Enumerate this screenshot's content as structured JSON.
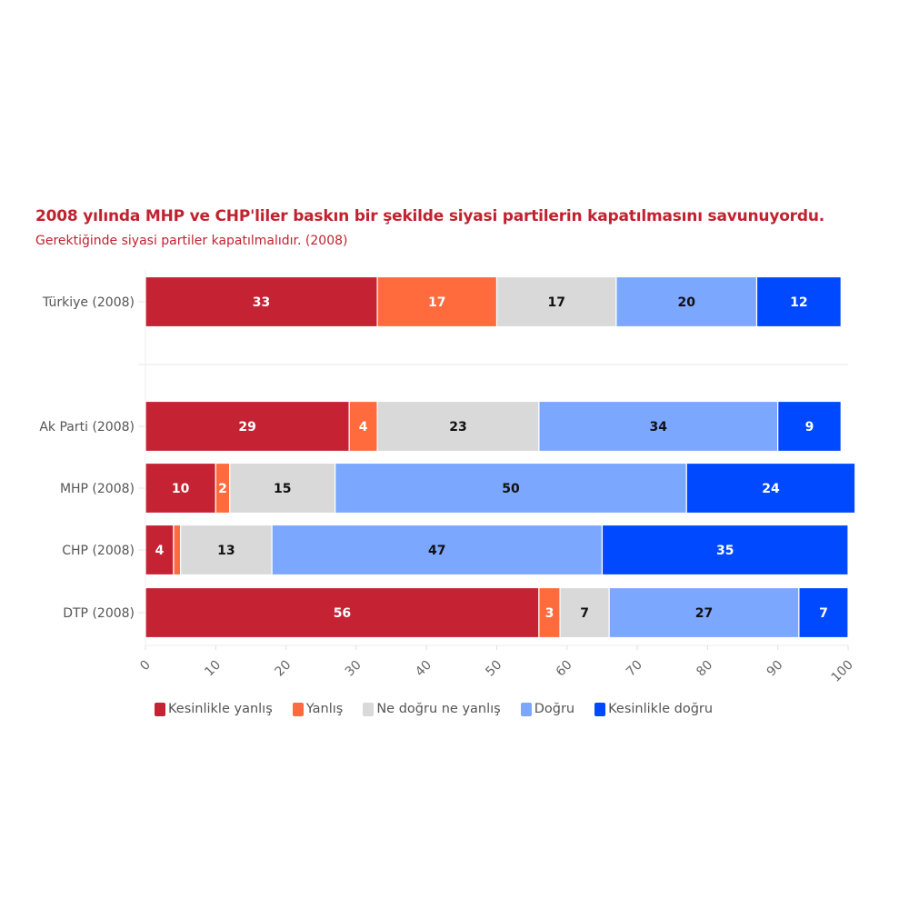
{
  "chart_data": {
    "type": "bar",
    "orientation": "horizontal",
    "stacked": true,
    "title": "2008 yılında MHP ve CHP'liler baskın bir şekilde siyasi partilerin kapatılmasını savunuyordu.",
    "subtitle": "Gerektiğinde siyasi partiler kapatılmalıdır. (2008)",
    "xlabel": "",
    "ylabel": "",
    "xlim": [
      0,
      100
    ],
    "xticks": [
      "0",
      "10",
      "20",
      "30",
      "40",
      "50",
      "60",
      "70",
      "80",
      "90",
      "100"
    ],
    "categories": [
      "Türkiye (2008)",
      "Ak Parti (2008)",
      "MHP (2008)",
      "CHP (2008)",
      "DTP (2008)"
    ],
    "legend_position": "bottom",
    "series": [
      {
        "name": "Kesinlikle yanlış",
        "color": "#c52233",
        "label_color": "#ffffff",
        "values": [
          33,
          29,
          10,
          4,
          56
        ],
        "labels": [
          "33",
          "29",
          "10",
          "4",
          "56"
        ]
      },
      {
        "name": "Yanlış",
        "color": "#ff6b3d",
        "label_color": "#ffffff",
        "values": [
          17,
          4,
          2,
          1,
          3
        ],
        "labels": [
          "17",
          "4",
          "2",
          "",
          "3"
        ]
      },
      {
        "name": "Ne doğru ne yanlış",
        "color": "#d9d9d9",
        "label_color": "#111111",
        "values": [
          17,
          23,
          15,
          13,
          7
        ],
        "labels": [
          "17",
          "23",
          "15",
          "13",
          "7"
        ]
      },
      {
        "name": "Doğru",
        "color": "#7ba7ff",
        "label_color": "#111111",
        "values": [
          20,
          34,
          50,
          47,
          27
        ],
        "labels": [
          "20",
          "34",
          "50",
          "47",
          "27"
        ]
      },
      {
        "name": "Kesinlikle doğru",
        "color": "#0049ff",
        "label_color": "#ffffff",
        "values": [
          12,
          9,
          24,
          35,
          7
        ],
        "labels": [
          "12",
          "9",
          "24",
          "35",
          "7"
        ]
      }
    ]
  }
}
